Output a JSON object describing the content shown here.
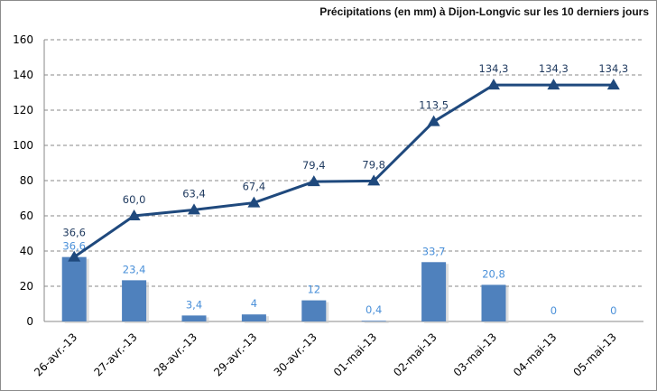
{
  "chart_data": {
    "type": "bar+line",
    "title": "Précipitations  (en mm) à Dijon-Longvic  sur les 10 derniers jours",
    "categories": [
      "26-avr.-13",
      "27-avr.-13",
      "28-avr.-13",
      "29-avr.-13",
      "30-avr.-13",
      "01-mai-13",
      "02-mai-13",
      "03-mai-13",
      "04-mai-13",
      "05-mai-13"
    ],
    "series": [
      {
        "type": "bar",
        "values": [
          36.6,
          23.4,
          3.4,
          4,
          12,
          0.4,
          33.7,
          20.8,
          0,
          0
        ],
        "labels": [
          "36,6",
          "23,4",
          "3,4",
          "4",
          "12",
          "0,4",
          "33,7",
          "20,8",
          "0",
          "0"
        ],
        "color": "#4f81bd"
      },
      {
        "type": "line",
        "values": [
          36.6,
          60.0,
          63.4,
          67.4,
          79.4,
          79.8,
          113.5,
          134.3,
          134.3,
          134.3
        ],
        "labels": [
          "36,6",
          "60,0",
          "63,4",
          "67,4",
          "79,4",
          "79,8",
          "113,5",
          "134,3",
          "134,3",
          "134,3"
        ],
        "color": "#1f497d",
        "marker": "triangle"
      }
    ],
    "yticks": [
      "0",
      "20",
      "40",
      "60",
      "80",
      "100",
      "120",
      "140",
      "160"
    ],
    "ylim": [
      0,
      160
    ],
    "grid": true,
    "xlabel": "",
    "ylabel": ""
  }
}
